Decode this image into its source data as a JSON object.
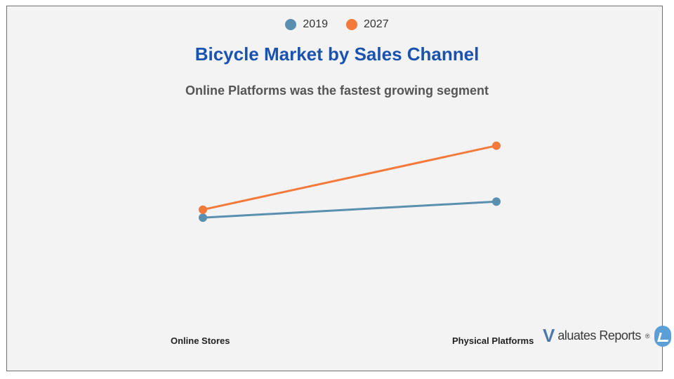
{
  "chart_data": {
    "type": "line",
    "title": "Bicycle Market by Sales Channel",
    "subtitle": "Online Platforms was the fastest growing segment",
    "categories": [
      "Online Stores",
      "Physical Platforms"
    ],
    "series": [
      {
        "name": "2019",
        "color": "#5a8fb0",
        "values": [
          30,
          50
        ]
      },
      {
        "name": "2027",
        "color": "#f47a3c",
        "values": [
          40,
          120
        ]
      }
    ],
    "ylim": [
      -70,
      160
    ],
    "grid": false,
    "legend_position": "top-center"
  },
  "logo": {
    "letter": "V",
    "text": "aluates Reports",
    "mark": "®"
  }
}
